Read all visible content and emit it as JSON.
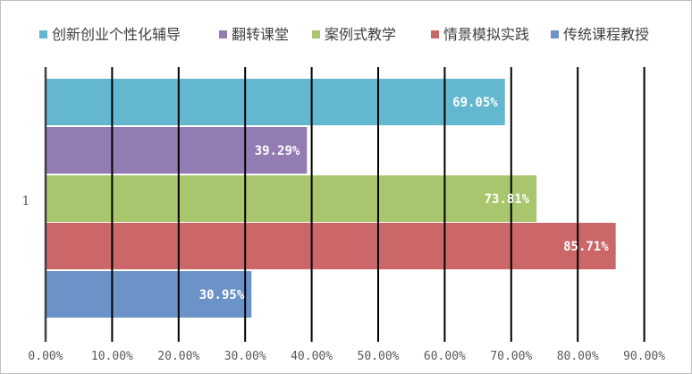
{
  "chart_data": {
    "type": "bar",
    "orientation": "horizontal",
    "categories": [
      "1"
    ],
    "series": [
      {
        "name": "创新创业个性化辅导",
        "values": [
          69.05
        ],
        "label": "69.05%",
        "color": "#63b7cf"
      },
      {
        "name": "翻转课堂",
        "values": [
          39.29
        ],
        "label": "39.29%",
        "color": "#937bb4"
      },
      {
        "name": "案例式教学",
        "values": [
          73.81
        ],
        "label": "73.81%",
        "color": "#a8c66d"
      },
      {
        "name": "情景模拟实践",
        "values": [
          85.71
        ],
        "label": "85.71%",
        "color": "#cb6768"
      },
      {
        "name": "传统课程教授",
        "values": [
          30.95
        ],
        "label": "30.95%",
        "color": "#6b93c8"
      }
    ],
    "xticks": [
      "0.00%",
      "10.00%",
      "20.00%",
      "30.00%",
      "40.00%",
      "50.00%",
      "60.00%",
      "70.00%",
      "80.00%",
      "90.00%"
    ],
    "xlim": [
      0,
      90
    ],
    "grid": true,
    "legend_position": "top"
  }
}
